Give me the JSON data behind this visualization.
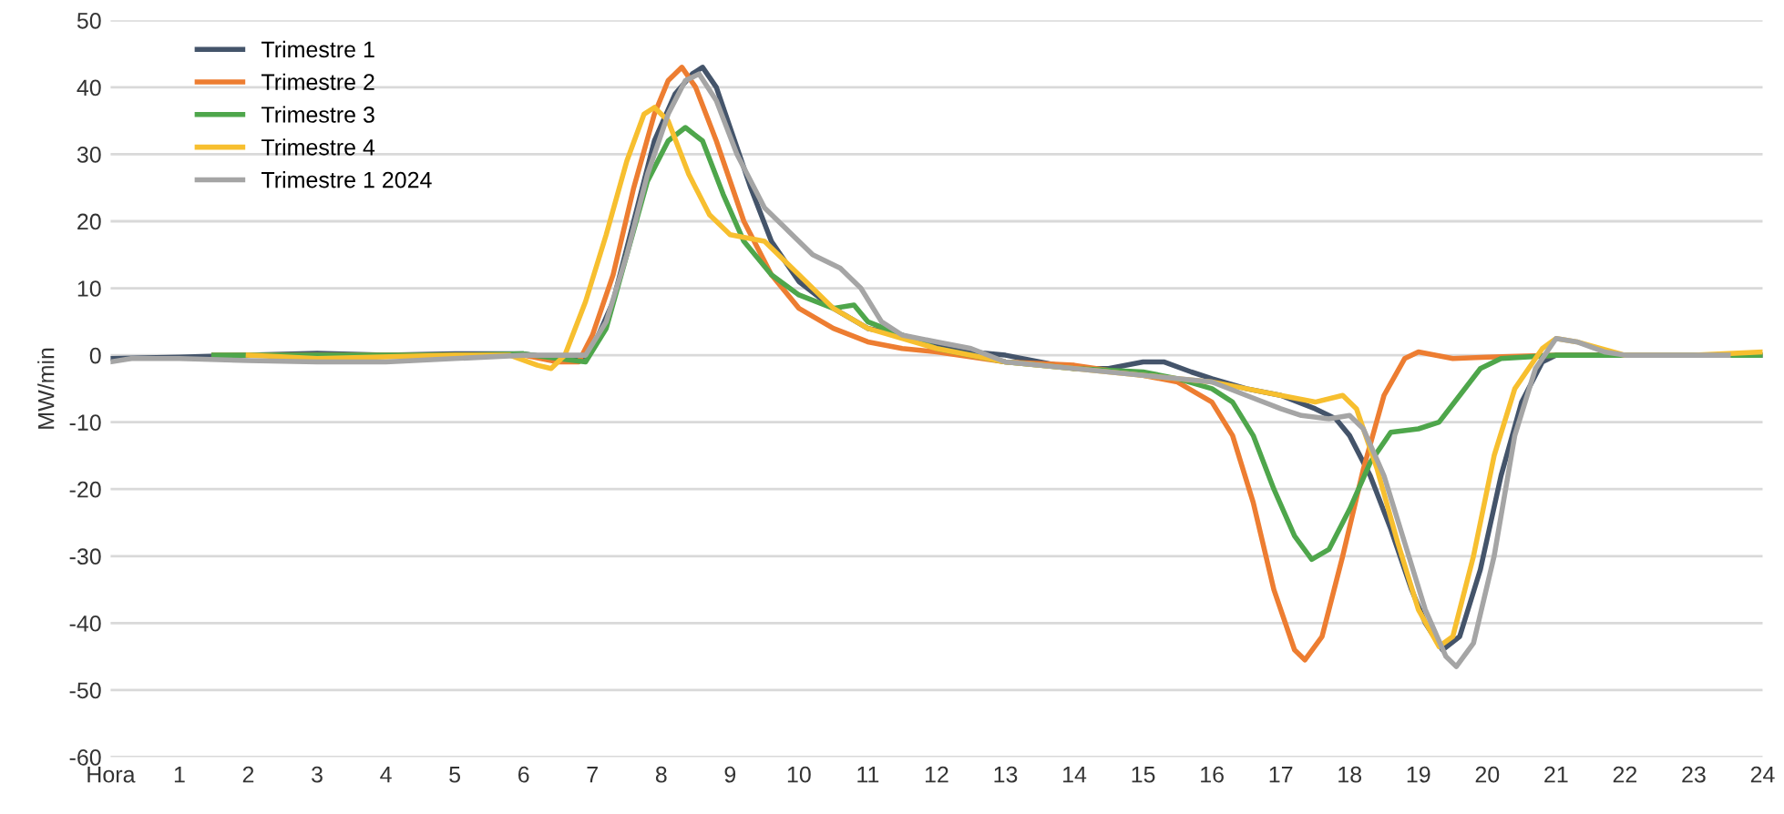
{
  "chart_data": {
    "type": "line",
    "ylabel": "MW/min",
    "xlim": [
      0,
      24
    ],
    "ylim": [
      -60,
      50
    ],
    "xticks": [
      {
        "value": 0,
        "label": "Hora"
      },
      1,
      2,
      3,
      4,
      5,
      6,
      7,
      8,
      9,
      10,
      11,
      12,
      13,
      14,
      15,
      16,
      17,
      18,
      19,
      20,
      21,
      22,
      23,
      24
    ],
    "yticks": [
      -60,
      -50,
      -40,
      -30,
      -20,
      -10,
      0,
      10,
      20,
      30,
      40,
      50
    ],
    "grid": "y",
    "legend": "top left",
    "marker": "none",
    "line_style": "solid",
    "series": [
      {
        "name": "Trimestre 1",
        "color": "#44546a",
        "x": [
          0,
          1,
          2,
          3,
          4,
          5,
          6,
          6.5,
          6.8,
          7,
          7.3,
          7.6,
          7.9,
          8.2,
          8.45,
          8.6,
          8.8,
          9,
          9.3,
          9.6,
          10,
          10.5,
          11,
          11.5,
          12,
          12.5,
          13,
          13.5,
          14,
          14.5,
          15,
          15.3,
          15.7,
          16,
          16.5,
          17,
          17.5,
          17.8,
          18,
          18.3,
          18.6,
          18.9,
          19.1,
          19.35,
          19.6,
          19.9,
          20.2,
          20.5,
          20.8,
          21,
          21.5,
          22,
          23,
          24
        ],
        "values": [
          -0.5,
          -0.3,
          0,
          0.3,
          0,
          0.2,
          0.2,
          -0.5,
          -0.8,
          1,
          8,
          20,
          32,
          39,
          42,
          43,
          40,
          34,
          25,
          17,
          11,
          7,
          4,
          3,
          1.5,
          0.5,
          0,
          -1,
          -2,
          -2,
          -1,
          -1,
          -2.5,
          -3.5,
          -5,
          -6,
          -8,
          -9.5,
          -12,
          -18,
          -26,
          -35,
          -40,
          -44,
          -42,
          -32,
          -18,
          -7,
          -1,
          0,
          0,
          0,
          0,
          0
        ]
      },
      {
        "name": "Trimestre 2",
        "color": "#ed7d31",
        "x": [
          1.5,
          3,
          5,
          6,
          6.5,
          6.8,
          7,
          7.3,
          7.6,
          7.9,
          8.1,
          8.3,
          8.5,
          8.8,
          9.2,
          9.6,
          10,
          10.5,
          11,
          11.5,
          12,
          13,
          14,
          15,
          15.5,
          16,
          16.3,
          16.6,
          16.9,
          17.2,
          17.35,
          17.6,
          17.9,
          18.2,
          18.5,
          18.8,
          19,
          19.5,
          20,
          21,
          21.5,
          22,
          22.5
        ],
        "values": [
          0,
          0,
          0,
          0,
          -1,
          -1,
          3,
          12,
          25,
          36,
          41,
          43,
          40,
          32,
          20,
          12,
          7,
          4,
          2,
          1,
          0.5,
          -1,
          -1.5,
          -3,
          -4,
          -7,
          -12,
          -22,
          -35,
          -44,
          -45.5,
          -42,
          -30,
          -17,
          -6,
          -0.5,
          0.5,
          -0.5,
          -0.3,
          0,
          0,
          0,
          0
        ]
      },
      {
        "name": "Trimestre 3",
        "color": "#4ea64b",
        "x": [
          1.5,
          3,
          4,
          5,
          6,
          6.5,
          6.9,
          7.2,
          7.5,
          7.8,
          8.1,
          8.35,
          8.6,
          8.9,
          9.2,
          9.6,
          10,
          10.5,
          10.8,
          11,
          11.5,
          12,
          13,
          14,
          15,
          15.5,
          16,
          16.3,
          16.6,
          16.9,
          17.2,
          17.45,
          17.7,
          18,
          18.3,
          18.6,
          19,
          19.3,
          19.6,
          19.9,
          20.2,
          21,
          22,
          23,
          24
        ],
        "values": [
          0,
          0,
          0,
          0,
          0.2,
          -0.5,
          -1,
          4,
          15,
          26,
          32,
          34,
          32,
          24,
          17,
          12,
          9,
          7,
          7.5,
          5,
          3,
          1,
          -1,
          -2,
          -2.5,
          -3.5,
          -5,
          -7,
          -12,
          -20,
          -27,
          -30.5,
          -29,
          -23,
          -16,
          -11.5,
          -11,
          -10,
          -6,
          -2,
          -0.5,
          0,
          0,
          0,
          0
        ]
      },
      {
        "name": "Trimestre 4",
        "color": "#f7bf2f",
        "x": [
          2,
          3,
          5,
          5.8,
          6.2,
          6.4,
          6.6,
          6.9,
          7.2,
          7.5,
          7.75,
          7.9,
          8.1,
          8.4,
          8.7,
          9,
          9.5,
          10,
          10.5,
          11,
          12,
          13,
          14,
          15,
          16,
          16.5,
          17,
          17.5,
          17.9,
          18.1,
          18.4,
          18.7,
          19,
          19.3,
          19.5,
          19.8,
          20.1,
          20.4,
          20.8,
          21,
          21.3,
          22,
          23,
          24
        ],
        "values": [
          0,
          -0.5,
          0,
          0,
          -1.5,
          -2,
          0,
          8,
          18,
          29,
          36,
          37,
          35,
          27,
          21,
          18,
          17,
          12,
          7,
          4,
          1,
          -1,
          -2,
          -3,
          -4,
          -5,
          -6,
          -7,
          -6,
          -8,
          -17,
          -28,
          -38,
          -43.5,
          -42,
          -30,
          -15,
          -5,
          1,
          2.5,
          2,
          0,
          0,
          0.5
        ]
      },
      {
        "name": "Trimestre 1 2024",
        "color": "#a5a5a5",
        "x": [
          0,
          0.3,
          1,
          2,
          3,
          4,
          5,
          6,
          6.5,
          6.9,
          7.2,
          7.5,
          7.8,
          8.1,
          8.35,
          8.55,
          8.8,
          9.1,
          9.5,
          9.8,
          10.2,
          10.6,
          10.9,
          11.2,
          11.5,
          12,
          12.5,
          13,
          14,
          15,
          15.5,
          16,
          16.5,
          17,
          17.3,
          17.7,
          18,
          18.2,
          18.5,
          18.8,
          19.1,
          19.4,
          19.55,
          19.8,
          20.1,
          20.4,
          20.7,
          21,
          21.3,
          21.7,
          22,
          23,
          23.5
        ],
        "values": [
          -1,
          -0.5,
          -0.5,
          -0.8,
          -1,
          -1,
          -0.5,
          0,
          0,
          0,
          5,
          15,
          27,
          36,
          41,
          42,
          38,
          30,
          22,
          19,
          15,
          13,
          10,
          5,
          3,
          2,
          1,
          -1,
          -2,
          -3,
          -3.5,
          -4,
          -6,
          -8,
          -9,
          -9.5,
          -9,
          -11,
          -18,
          -28,
          -38,
          -45,
          -46.5,
          -43,
          -30,
          -12,
          -2,
          2.5,
          2,
          0.5,
          0,
          0,
          0
        ]
      }
    ]
  }
}
